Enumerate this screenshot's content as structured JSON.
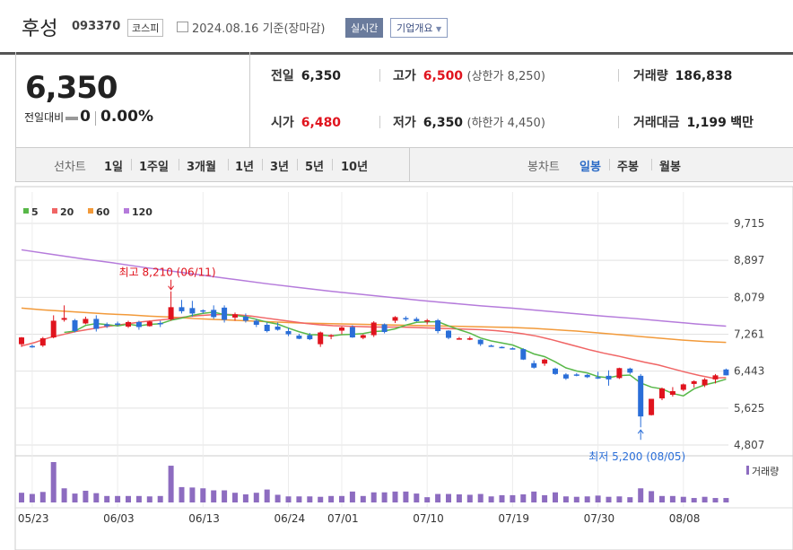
{
  "header": {
    "company": "후성",
    "code": "093370",
    "market_badge": "코스피",
    "date": "2024.08.16 기준(장마감)",
    "realtime_btn": "실시간",
    "corp_btn": "기업개요"
  },
  "price": {
    "current": "6,350",
    "change_label": "전일대비",
    "change_value": "0",
    "change_pct": "0.00%"
  },
  "stats": {
    "prev_label": "전일",
    "prev_value": "6,350",
    "high_label": "고가",
    "high_value": "6,500",
    "upper_limit": "(상한가 8,250)",
    "volume_label": "거래량",
    "volume_value": "186,838",
    "open_label": "시가",
    "open_value": "6,480",
    "low_label": "저가",
    "low_value": "6,350",
    "lower_limit": "(하한가 4,450)",
    "amount_label": "거래대금",
    "amount_value": "1,199",
    "amount_unit": "백만"
  },
  "tabs": {
    "line_label": "선차트",
    "periods": [
      "1일",
      "1주일",
      "3개월",
      "1년",
      "3년",
      "5년",
      "10년"
    ],
    "candle_label": "봉차트",
    "candle_types": [
      "일봉",
      "주봉",
      "월봉"
    ],
    "candle_active": "일봉"
  },
  "colors": {
    "up": "#e0141e",
    "down": "#2a6ed8",
    "ma5": "#58b848",
    "ma20": "#f06565",
    "ma60": "#f29a3a",
    "ma120": "#b57bdb",
    "volume": "#8d6cc0"
  },
  "chart_data": {
    "type": "candlestick",
    "legend": [
      "5",
      "20",
      "60",
      "120"
    ],
    "yticks": [
      "9,715",
      "8,897",
      "8,079",
      "7,261",
      "6,443",
      "5,625",
      "4,807"
    ],
    "ylim": [
      4807,
      9715
    ],
    "xticks": [
      "05/23",
      "06/03",
      "06/13",
      "06/24",
      "07/01",
      "07/10",
      "07/19",
      "07/30",
      "08/08"
    ],
    "xtick_index": [
      1,
      9,
      17,
      25,
      30,
      38,
      46,
      54,
      62
    ],
    "high_annotation": "최고 8,210 (06/11)",
    "low_annotation": "최저 5,200 (08/05)",
    "volume_label": "거래량",
    "candles": [
      [
        7040,
        7200,
        6980,
        7190
      ],
      [
        7000,
        7030,
        6960,
        6970
      ],
      [
        7010,
        7200,
        6980,
        7170
      ],
      [
        7190,
        7680,
        7170,
        7560
      ],
      [
        7580,
        7900,
        7540,
        7620
      ],
      [
        7570,
        7600,
        7300,
        7330
      ],
      [
        7500,
        7650,
        7480,
        7600
      ],
      [
        7600,
        7680,
        7320,
        7380
      ],
      [
        7480,
        7520,
        7400,
        7440
      ],
      [
        7500,
        7540,
        7440,
        7470
      ],
      [
        7430,
        7560,
        7400,
        7530
      ],
      [
        7530,
        7560,
        7360,
        7420
      ],
      [
        7440,
        7560,
        7430,
        7540
      ],
      [
        7510,
        7560,
        7420,
        7500
      ],
      [
        7590,
        8210,
        7560,
        7860
      ],
      [
        7860,
        8020,
        7720,
        7770
      ],
      [
        7840,
        8000,
        7650,
        7720
      ],
      [
        7790,
        7810,
        7720,
        7760
      ],
      [
        7800,
        7900,
        7600,
        7640
      ],
      [
        7850,
        7900,
        7520,
        7580
      ],
      [
        7630,
        7740,
        7560,
        7700
      ],
      [
        7650,
        7720,
        7520,
        7560
      ],
      [
        7560,
        7600,
        7420,
        7470
      ],
      [
        7470,
        7520,
        7300,
        7330
      ],
      [
        7430,
        7520,
        7340,
        7360
      ],
      [
        7330,
        7400,
        7220,
        7260
      ],
      [
        7230,
        7270,
        7150,
        7160
      ],
      [
        7240,
        7290,
        7130,
        7150
      ],
      [
        7040,
        7320,
        6980,
        7300
      ],
      [
        7210,
        7260,
        7150,
        7240
      ],
      [
        7340,
        7430,
        7260,
        7410
      ],
      [
        7420,
        7460,
        7180,
        7190
      ],
      [
        7180,
        7260,
        7150,
        7240
      ],
      [
        7240,
        7550,
        7200,
        7520
      ],
      [
        7480,
        7500,
        7280,
        7310
      ],
      [
        7560,
        7660,
        7510,
        7640
      ],
      [
        7620,
        7660,
        7550,
        7600
      ],
      [
        7600,
        7640,
        7540,
        7550
      ],
      [
        7550,
        7600,
        7480,
        7570
      ],
      [
        7570,
        7600,
        7280,
        7330
      ],
      [
        7340,
        7350,
        7150,
        7180
      ],
      [
        7170,
        7200,
        7140,
        7170
      ],
      [
        7170,
        7210,
        7130,
        7170
      ],
      [
        7140,
        7150,
        7000,
        7040
      ],
      [
        7010,
        7030,
        6990,
        7000
      ],
      [
        6980,
        6990,
        6950,
        6960
      ],
      [
        6950,
        6970,
        6930,
        6940
      ],
      [
        6930,
        6950,
        6690,
        6700
      ],
      [
        6620,
        6680,
        6500,
        6520
      ],
      [
        6610,
        6720,
        6560,
        6700
      ],
      [
        6500,
        6520,
        6360,
        6380
      ],
      [
        6370,
        6400,
        6250,
        6280
      ],
      [
        6370,
        6400,
        6330,
        6350
      ],
      [
        6360,
        6380,
        6290,
        6310
      ],
      [
        6310,
        6430,
        6270,
        6290
      ],
      [
        6340,
        6460,
        6120,
        6260
      ],
      [
        6290,
        6520,
        6270,
        6510
      ],
      [
        6500,
        6520,
        6380,
        6410
      ],
      [
        6340,
        6380,
        5200,
        5440
      ],
      [
        5470,
        5830,
        5460,
        5830
      ],
      [
        5840,
        6080,
        5800,
        6060
      ],
      [
        5920,
        6090,
        5880,
        6000
      ],
      [
        6030,
        6170,
        6000,
        6150
      ],
      [
        6160,
        6240,
        6080,
        6220
      ],
      [
        6130,
        6290,
        6090,
        6260
      ],
      [
        6260,
        6380,
        6170,
        6350
      ],
      [
        6480,
        6500,
        6350,
        6350
      ]
    ],
    "volumes": [
      2.4,
      2.1,
      2.6,
      10,
      3.5,
      2.2,
      2.9,
      2.3,
      1.6,
      1.6,
      1.6,
      1.6,
      1.5,
      1.6,
      9.1,
      3.8,
      3.7,
      3.5,
      3.0,
      3.0,
      2.4,
      2.0,
      2.4,
      3.2,
      1.9,
      1.5,
      1.5,
      1.5,
      1.4,
      1.6,
      1.6,
      2.7,
      1.6,
      2.5,
      2.5,
      2.7,
      2.7,
      2.2,
      1.3,
      2.1,
      2.1,
      2.0,
      1.9,
      2.1,
      1.5,
      1.8,
      1.8,
      2.0,
      2.7,
      1.8,
      2.5,
      1.5,
      1.4,
      1.5,
      1.7,
      1.4,
      1.5,
      1.3,
      3.5,
      2.8,
      1.6,
      1.6,
      1.4,
      1.1,
      1.4,
      1.1,
      1.1
    ],
    "ma5_start": 6,
    "ma20_start": 0,
    "ma20": [
      7000,
      7080,
      7180,
      7250,
      7320,
      7370,
      7420,
      7460,
      7500,
      7540,
      7570,
      7600,
      7640,
      7670,
      7690,
      7700,
      7690,
      7660,
      7620,
      7580,
      7540,
      7500,
      7470,
      7450,
      7440,
      7430,
      7420,
      7420,
      7420,
      7410,
      7400,
      7390,
      7380,
      7370,
      7360,
      7340,
      7310,
      7270,
      7220,
      7150,
      7070,
      6990,
      6910,
      6840,
      6780,
      6710,
      6640,
      6580,
      6500,
      6420,
      6350,
      6290,
      6300
    ],
    "ma20_offset": 14,
    "ma60_start": 0,
    "ma60": [
      7840,
      7800,
      7770,
      7740,
      7710,
      7690,
      7660,
      7640,
      7610,
      7590,
      7570,
      7550,
      7530,
      7510,
      7500,
      7490,
      7480,
      7470,
      7460,
      7450,
      7440,
      7430,
      7420,
      7410,
      7390,
      7360,
      7330,
      7290,
      7250,
      7210,
      7170,
      7130,
      7100,
      7080
    ],
    "ma120": [
      9130,
      9030,
      8930,
      8840,
      8740,
      8650,
      8560,
      8470,
      8380,
      8300,
      8220,
      8150,
      8080,
      8010,
      7950,
      7890,
      7840,
      7780,
      7720,
      7660,
      7610,
      7550,
      7490,
      7440
    ]
  }
}
